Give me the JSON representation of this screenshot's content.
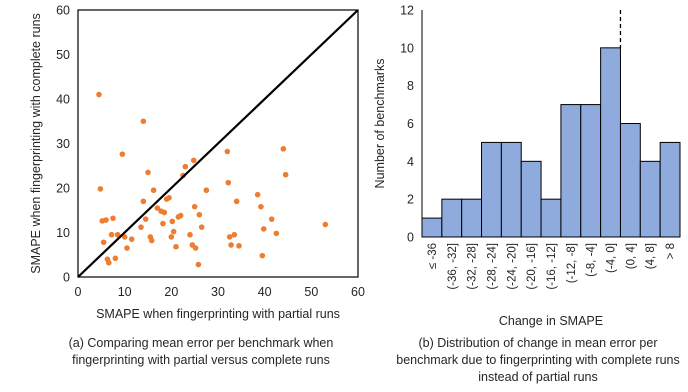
{
  "captions": {
    "left": "(a) Comparing mean error per benchmark when fingerprinting with partial versus complete runs",
    "right": "(b) Distribution of change in mean error per benchmark due to fingerprinting with complete runs instead of partial runs"
  },
  "colors": {
    "scatter_point": "#ED7D31",
    "bar_fill": "#8FAADC",
    "bar_edge": "#000000",
    "diagonal_line": "#000000"
  },
  "chart_data": [
    {
      "type": "scatter",
      "xlabel": "SMAPE when fingerprinting with partial runs",
      "ylabel": "SMAPE when fingerprinting with complete runs",
      "xlim": [
        0,
        60
      ],
      "ylim": [
        0,
        60
      ],
      "xticks": [
        0,
        10,
        20,
        30,
        40,
        50,
        60
      ],
      "yticks": [
        0,
        10,
        20,
        30,
        40,
        50,
        60
      ],
      "grid": false,
      "reference_line": {
        "from": [
          0,
          0
        ],
        "to": [
          60,
          60
        ]
      },
      "points": [
        [
          4.5,
          41
        ],
        [
          4.8,
          19.8
        ],
        [
          5.2,
          12.6
        ],
        [
          5.5,
          7.8
        ],
        [
          6.0,
          12.8
        ],
        [
          6.3,
          4.0
        ],
        [
          6.6,
          3.2
        ],
        [
          7.2,
          9.5
        ],
        [
          7.5,
          13.2
        ],
        [
          8.0,
          4.2
        ],
        [
          8.5,
          9.5
        ],
        [
          9.5,
          27.6
        ],
        [
          10.0,
          9.0
        ],
        [
          10.5,
          6.5
        ],
        [
          11.5,
          8.5
        ],
        [
          13.5,
          11.2
        ],
        [
          14.0,
          17.0
        ],
        [
          14.5,
          13.0
        ],
        [
          14.0,
          35.0
        ],
        [
          15.0,
          23.5
        ],
        [
          15.5,
          9.0
        ],
        [
          15.8,
          8.2
        ],
        [
          16.2,
          19.5
        ],
        [
          17.0,
          15.5
        ],
        [
          17.8,
          14.8
        ],
        [
          18.2,
          12.0
        ],
        [
          18.5,
          14.5
        ],
        [
          19.0,
          17.5
        ],
        [
          19.5,
          17.8
        ],
        [
          20.0,
          9.0
        ],
        [
          20.2,
          12.5
        ],
        [
          20.5,
          10.2
        ],
        [
          21.0,
          6.8
        ],
        [
          21.5,
          13.5
        ],
        [
          22.0,
          13.8
        ],
        [
          22.5,
          22.8
        ],
        [
          23.0,
          24.8
        ],
        [
          24.0,
          9.5
        ],
        [
          24.5,
          7.2
        ],
        [
          24.8,
          26.2
        ],
        [
          25.0,
          15.8
        ],
        [
          25.2,
          6.5
        ],
        [
          25.8,
          2.8
        ],
        [
          26.0,
          14.0
        ],
        [
          26.5,
          11.2
        ],
        [
          27.5,
          19.5
        ],
        [
          32.0,
          28.2
        ],
        [
          32.2,
          21.2
        ],
        [
          32.5,
          9.0
        ],
        [
          32.8,
          7.2
        ],
        [
          33.5,
          9.5
        ],
        [
          34.0,
          17.0
        ],
        [
          34.5,
          7.0
        ],
        [
          38.5,
          18.5
        ],
        [
          39.2,
          15.8
        ],
        [
          39.5,
          4.8
        ],
        [
          39.8,
          10.8
        ],
        [
          41.5,
          13.0
        ],
        [
          42.5,
          9.8
        ],
        [
          44.0,
          28.8
        ],
        [
          44.5,
          23.0
        ],
        [
          53.0,
          11.8
        ]
      ]
    },
    {
      "type": "bar",
      "xlabel": "Change in SMAPE",
      "ylabel": "Number of benchmarks",
      "ylim": [
        0,
        12
      ],
      "yticks": [
        0,
        2,
        4,
        6,
        8,
        10,
        12
      ],
      "grid": false,
      "categories": [
        "≤ -36",
        "(-36, -32]",
        "(-32, -28]",
        "(-28, -24]",
        "(-24, -20]",
        "(-20, -16]",
        "(-16, -12]",
        "(-12, -8]",
        "(-8, -4]",
        "(-4, 0]",
        "(0, 4]",
        "(4, 8]",
        "> 8"
      ],
      "values": [
        1,
        2,
        2,
        5,
        5,
        4,
        2,
        7,
        7,
        10,
        6,
        4,
        5
      ],
      "marker_line": {
        "at_category_boundary_after": "(-4, 0]",
        "style": "dashed"
      }
    }
  ]
}
